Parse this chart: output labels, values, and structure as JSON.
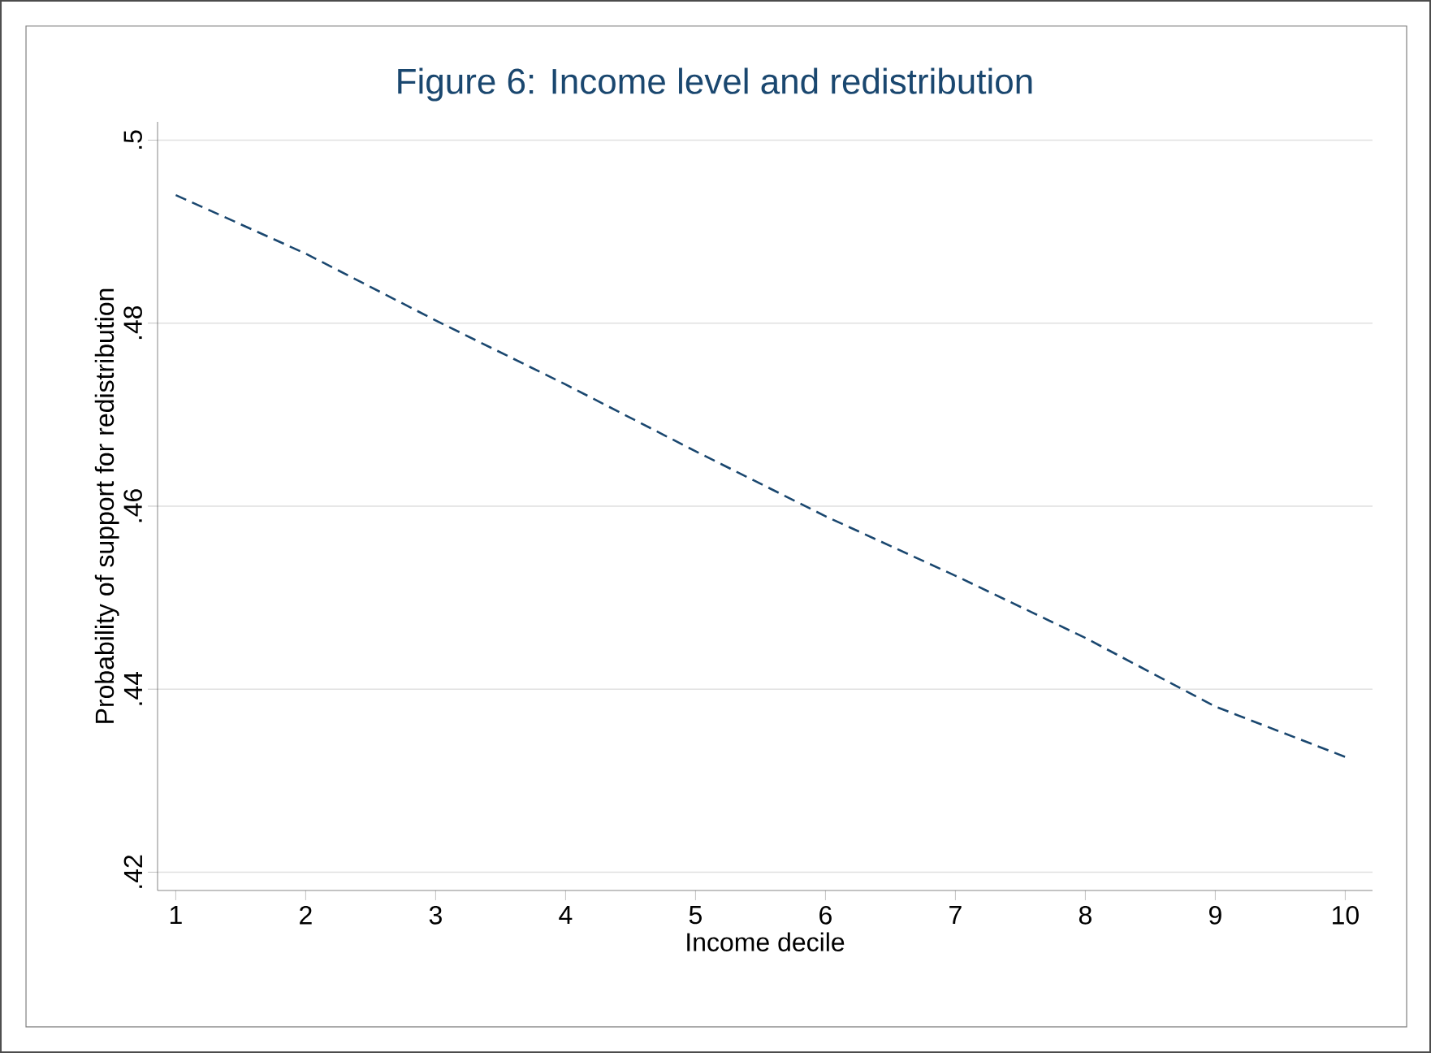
{
  "chart_data": {
    "type": "line",
    "title": "Figure 6: Income level and redistribution",
    "xlabel": "Income decile",
    "ylabel": "Probability of support for redistribution",
    "x": [
      1,
      2,
      3,
      4,
      5,
      6,
      7,
      8,
      9,
      10
    ],
    "series": [
      {
        "color": "#1a476f",
        "values": [
          0.494,
          0.4876,
          0.4803,
          0.4733,
          0.466,
          0.4589,
          0.4524,
          0.4456,
          0.4381,
          0.4326
        ]
      }
    ],
    "xlim": [
      0.86,
      10.21
    ],
    "ylim": [
      0.418,
      0.502
    ],
    "xticks": [
      1,
      2,
      3,
      4,
      5,
      6,
      7,
      8,
      9,
      10
    ],
    "yticks": [
      {
        "value": 0.42,
        "label": ".42"
      },
      {
        "value": 0.44,
        "label": ".44"
      },
      {
        "value": 0.46,
        "label": ".46"
      },
      {
        "value": 0.48,
        "label": ".48"
      },
      {
        "value": 0.5,
        "label": ".5"
      }
    ],
    "grid": "y",
    "line_style": "dashed",
    "marker": "none"
  }
}
